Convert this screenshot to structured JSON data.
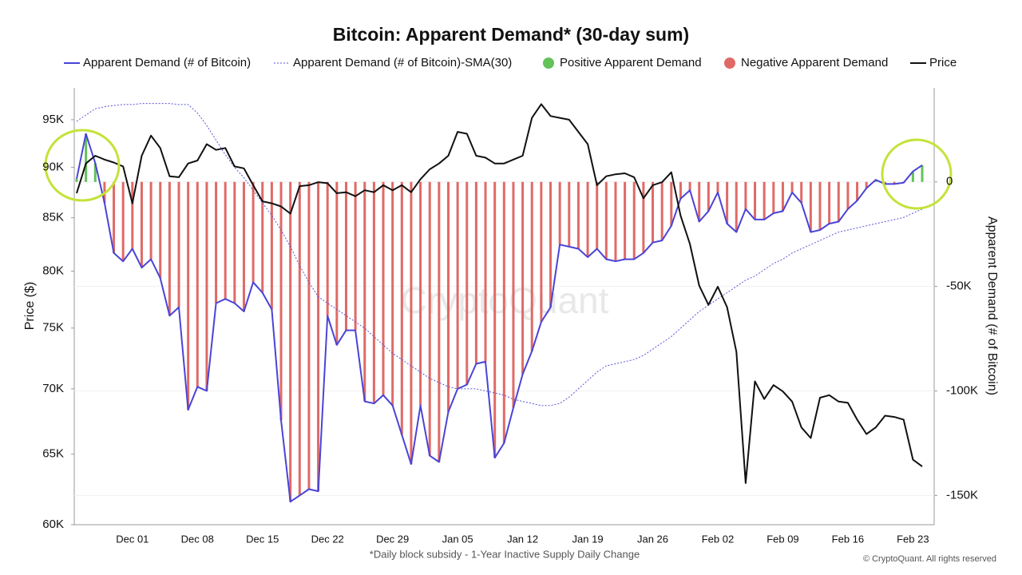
{
  "chart_data": {
    "type": "combo",
    "title": "Bitcoin: Apparent Demand* (30-day sum)",
    "footnote": "*Daily block subsidy - 1-Year Inactive Supply Daily Change",
    "copyright": "© CryptoQuant. All rights reserved",
    "watermark": "CryptoQuant",
    "ylabel": "Price ($)",
    "y2label": "Apparent Demand (# of Bitcoin)",
    "ylog": true,
    "grid": true,
    "legend": "top",
    "categories": [
      null,
      null,
      null,
      null,
      null,
      null,
      "Dec 01",
      null,
      null,
      null,
      null,
      null,
      null,
      "Dec 08",
      null,
      null,
      null,
      null,
      null,
      null,
      "Dec 15",
      null,
      null,
      null,
      null,
      null,
      null,
      "Dec 22",
      null,
      null,
      null,
      null,
      null,
      null,
      "Dec 29",
      null,
      null,
      null,
      null,
      null,
      null,
      "Jan 05",
      null,
      null,
      null,
      null,
      null,
      null,
      "Jan 12",
      null,
      null,
      null,
      null,
      null,
      null,
      "Jan 19",
      null,
      null,
      null,
      null,
      null,
      null,
      "Jan 26",
      null,
      null,
      null,
      null,
      null,
      null,
      "Feb 02",
      null,
      null,
      null,
      null,
      null,
      null,
      "Feb 09",
      null,
      null,
      null,
      null,
      null,
      null,
      "Feb 16",
      null,
      null,
      null,
      null,
      null,
      null,
      "Feb 23",
      null
    ],
    "ylim": [
      60000,
      98500
    ],
    "yticks": [
      {
        "value": 60000,
        "label": "60K"
      },
      {
        "value": 65000,
        "label": "65K"
      },
      {
        "value": 70000,
        "label": "70K"
      },
      {
        "value": 75000,
        "label": "75K"
      },
      {
        "value": 80000,
        "label": "80K"
      },
      {
        "value": 85000,
        "label": "85K"
      },
      {
        "value": 90000,
        "label": "90K"
      },
      {
        "value": 95000,
        "label": "95K"
      }
    ],
    "y2lim": [
      -164000,
      45000
    ],
    "y2ticks": [
      {
        "value": -150000,
        "label": "-150K"
      },
      {
        "value": -100000,
        "label": "-100K"
      },
      {
        "value": -50000,
        "label": "-50K"
      },
      0
    ],
    "bar_colors": {
      "positive": {
        "name": "Positive Apparent Demand",
        "color": "#63c25a"
      },
      "negative": {
        "name": "Negative Apparent Demand",
        "color": "#e06a66"
      }
    },
    "series": [
      {
        "name": "Apparent Demand (# of Bitcoin)",
        "color": "#4a44d6",
        "style": "solid",
        "axis": "y2",
        "values": [
          1500,
          23000,
          9000,
          -10000,
          -34000,
          -38000,
          -32000,
          -41000,
          -37000,
          -46000,
          -64000,
          -60000,
          -109000,
          -98000,
          -100000,
          -58000,
          -56000,
          -58000,
          -62000,
          -48000,
          -53000,
          -61000,
          -114000,
          -153000,
          -150000,
          -147000,
          -148000,
          -64000,
          -78000,
          -71000,
          -71000,
          -105000,
          -106000,
          -102000,
          -107000,
          -121000,
          -135000,
          -107000,
          -131000,
          -134000,
          -110000,
          -99000,
          -97000,
          -87000,
          -86000,
          -132000,
          -125000,
          -108000,
          -92000,
          -81000,
          -67000,
          -60000,
          -30000,
          -31000,
          -32000,
          -36000,
          -32000,
          -37000,
          -38000,
          -37000,
          -37000,
          -34000,
          -29000,
          -28000,
          -21000,
          -8000,
          -4000,
          -19000,
          -14000,
          -5000,
          -20000,
          -24000,
          -13000,
          -18000,
          -18000,
          -15000,
          -14000,
          -5000,
          -10000,
          -24000,
          -23000,
          -20000,
          -19000,
          -13000,
          -9000,
          -3000,
          1000,
          -1000,
          -1000,
          -400,
          5000,
          8000
        ]
      },
      {
        "name": "Apparent Demand (# of Bitcoin)-SMA(30)",
        "color": "#5a55d8",
        "style": "dotted",
        "axis": "y2",
        "values": [
          29000,
          32000,
          35000,
          36000,
          36500,
          37000,
          37000,
          37500,
          37500,
          37500,
          37500,
          37000,
          37000,
          33000,
          27000,
          20000,
          13000,
          7000,
          2000,
          -4000,
          -10000,
          -16000,
          -23000,
          -31000,
          -40000,
          -48000,
          -55000,
          -58000,
          -61000,
          -64000,
          -67000,
          -70000,
          -74000,
          -78000,
          -82000,
          -85000,
          -88000,
          -91000,
          -94000,
          -96000,
          -98000,
          -99000,
          -99000,
          -99000,
          -100000,
          -101000,
          -102000,
          -104000,
          -105000,
          -106000,
          -107000,
          -107000,
          -106000,
          -103000,
          -99000,
          -95000,
          -91000,
          -88000,
          -87000,
          -86000,
          -85000,
          -83000,
          -80000,
          -77000,
          -74000,
          -70000,
          -66000,
          -62000,
          -59000,
          -56000,
          -53000,
          -50000,
          -47000,
          -45000,
          -42000,
          -39000,
          -37000,
          -34000,
          -32000,
          -30000,
          -28000,
          -26000,
          -24000,
          -23000,
          -22000,
          -21000,
          -20000,
          -19000,
          -18000,
          -17000,
          -15000,
          -13000
        ]
      },
      {
        "name": "Price",
        "color": "#111111",
        "style": "solid",
        "axis": "y",
        "values": [
          87400,
          90400,
          91200,
          90800,
          90500,
          90100,
          86400,
          91200,
          93300,
          92000,
          89100,
          89000,
          90400,
          90700,
          92400,
          91800,
          92000,
          90100,
          89900,
          88200,
          86600,
          86400,
          86100,
          85400,
          88100,
          88200,
          88500,
          88400,
          87400,
          87500,
          87100,
          87700,
          87500,
          88200,
          87700,
          88200,
          87500,
          88800,
          89800,
          90400,
          91200,
          93700,
          93500,
          91200,
          91000,
          90400,
          90400,
          90800,
          91200,
          95200,
          96700,
          95400,
          95200,
          95000,
          93700,
          92400,
          88200,
          89100,
          89300,
          89400,
          89000,
          86900,
          88200,
          88500,
          89500,
          85200,
          82500,
          78700,
          77000,
          78600,
          76800,
          73000,
          62900,
          70600,
          69200,
          70300,
          69800,
          69000,
          67000,
          66200,
          69300,
          69500,
          69000,
          68900,
          67600,
          66500,
          67000,
          67900,
          67800,
          67600,
          64600,
          64100
        ]
      }
    ]
  }
}
